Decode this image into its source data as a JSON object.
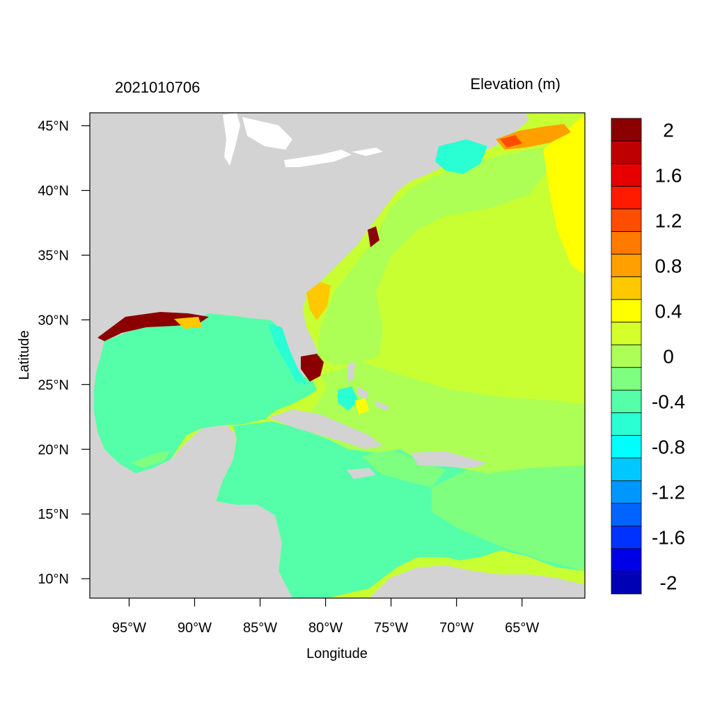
{
  "plot": {
    "left_title": "2021010706",
    "right_title": "Elevation (m)",
    "xlabel": "Longitude",
    "ylabel": "Latitude"
  },
  "map": {
    "lon_range": [
      -98,
      -60.2
    ],
    "lat_range": [
      8.5,
      46
    ],
    "land_color": "#d3d3d3",
    "lon_ticks": [
      {
        "value": -95,
        "label": "95°W"
      },
      {
        "value": -90,
        "label": "90°W"
      },
      {
        "value": -85,
        "label": "85°W"
      },
      {
        "value": -80,
        "label": "80°W"
      },
      {
        "value": -75,
        "label": "75°W"
      },
      {
        "value": -70,
        "label": "70°W"
      },
      {
        "value": -65,
        "label": "65°W"
      }
    ],
    "lat_ticks": [
      {
        "value": 45,
        "label": "45°N"
      },
      {
        "value": 40,
        "label": "40°N"
      },
      {
        "value": 35,
        "label": "35°N"
      },
      {
        "value": 30,
        "label": "30°N"
      },
      {
        "value": 25,
        "label": "25°N"
      },
      {
        "value": 20,
        "label": "20°N"
      },
      {
        "value": 15,
        "label": "15°N"
      },
      {
        "value": 10,
        "label": "10°N"
      }
    ]
  },
  "colorbar": {
    "colors_top_to_bottom": [
      "#8b0000",
      "#bf0000",
      "#e60000",
      "#ff1a00",
      "#ff4d00",
      "#ff7a00",
      "#ff9f00",
      "#ffc800",
      "#ffff00",
      "#d4ff2a",
      "#adff55",
      "#7fff7f",
      "#55ffaa",
      "#2affd4",
      "#00ffff",
      "#00c8ff",
      "#0096ff",
      "#0064ff",
      "#0032ff",
      "#0000e6",
      "#0000b4"
    ],
    "labels": [
      {
        "text": "2",
        "slot": 1
      },
      {
        "text": "1.6",
        "slot": 3
      },
      {
        "text": "1.2",
        "slot": 5
      },
      {
        "text": "0.8",
        "slot": 7
      },
      {
        "text": "0.4",
        "slot": 9
      },
      {
        "text": "0",
        "slot": 11
      },
      {
        "text": "-0.4",
        "slot": 13
      },
      {
        "text": "-0.8",
        "slot": 15
      },
      {
        "text": "-1.2",
        "slot": 17
      },
      {
        "text": "-1.6",
        "slot": 19
      },
      {
        "text": "-2",
        "slot": 21
      }
    ]
  }
}
